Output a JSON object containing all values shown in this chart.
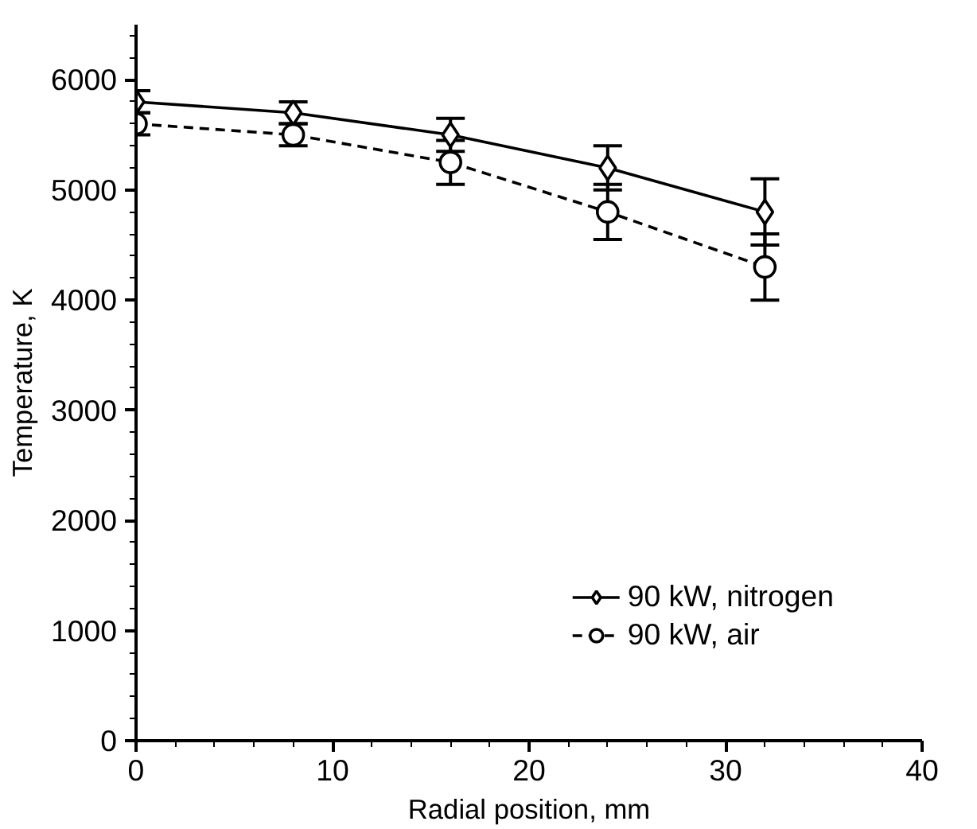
{
  "chart_data": {
    "type": "line",
    "xlabel": "Radial position, mm",
    "ylabel": "Temperature, K",
    "x": [
      0,
      8,
      16,
      24,
      32
    ],
    "series": [
      {
        "name": "90 kW, nitrogen",
        "color": "#000000",
        "values": [
          5800,
          5700,
          5500,
          5200,
          4800
        ],
        "errors": [
          100,
          100,
          150,
          200,
          300
        ],
        "marker": "diamond",
        "line_style": "solid"
      },
      {
        "name": "90 kW, air",
        "color": "#000000",
        "values": [
          5600,
          5500,
          5250,
          4800,
          4300
        ],
        "errors": [
          100,
          100,
          200,
          250,
          300
        ],
        "marker": "circle",
        "line_style": "dashed"
      }
    ],
    "xlim": [
      0,
      40
    ],
    "ylim": [
      0,
      6500
    ],
    "xticks": [
      0,
      10,
      20,
      30,
      40
    ],
    "yticks": [
      0,
      1000,
      2000,
      3000,
      4000,
      5000,
      6000
    ],
    "grid": false,
    "legend": "bottom right"
  }
}
